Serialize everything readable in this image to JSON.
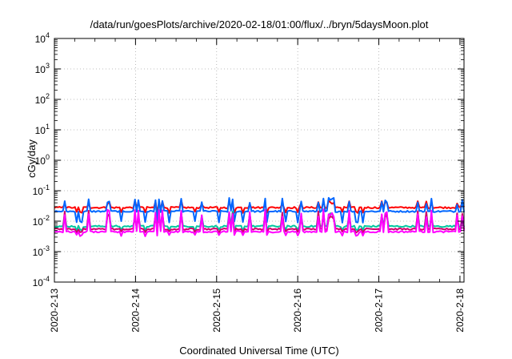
{
  "chart_data": {
    "type": "line",
    "title": "/data/run/goesPlots/archive/2020-02-18/01:00/flux/../bryn/5daysMoon.plot",
    "xlabel": "Coordinated Universal Time (UTC)",
    "ylabel": "cGy/day",
    "x_ticks": [
      "2020-2-13",
      "2020-2-14",
      "2020-2-15",
      "2020-2-16",
      "2020-2-17",
      "2020-2-18"
    ],
    "y_scale": "log",
    "ylim": [
      0.0001,
      10000
    ],
    "y_ticks": [
      {
        "base": "10",
        "exp": "-4"
      },
      {
        "base": "10",
        "exp": "-3"
      },
      {
        "base": "10",
        "exp": "-2"
      },
      {
        "base": "10",
        "exp": "-1"
      },
      {
        "base": "10",
        "exp": "0"
      },
      {
        "base": "10",
        "exp": "1"
      },
      {
        "base": "10",
        "exp": "2"
      },
      {
        "base": "10",
        "exp": "3"
      },
      {
        "base": "10",
        "exp": "4"
      }
    ],
    "grid": true,
    "xlim_days": [
      0,
      5.05
    ],
    "series": [
      {
        "color": "#ff0000",
        "baseline": 0.028,
        "spike_factor": 1.7,
        "dip_factor": 0.7
      },
      {
        "color": "#0066ff",
        "baseline": 0.021,
        "spike_factor": 2.8,
        "dip_factor": 0.45
      },
      {
        "color": "#00c8a0",
        "baseline": 0.0068,
        "spike_factor": 3.0,
        "dip_factor": 0.75
      },
      {
        "color": "#d0006a",
        "baseline": 0.0055,
        "spike_factor": 4.0,
        "dip_factor": 0.8
      },
      {
        "color": "#ff00ff",
        "baseline": 0.0045,
        "spike_factor": 5.5,
        "dip_factor": 0.75
      }
    ]
  }
}
